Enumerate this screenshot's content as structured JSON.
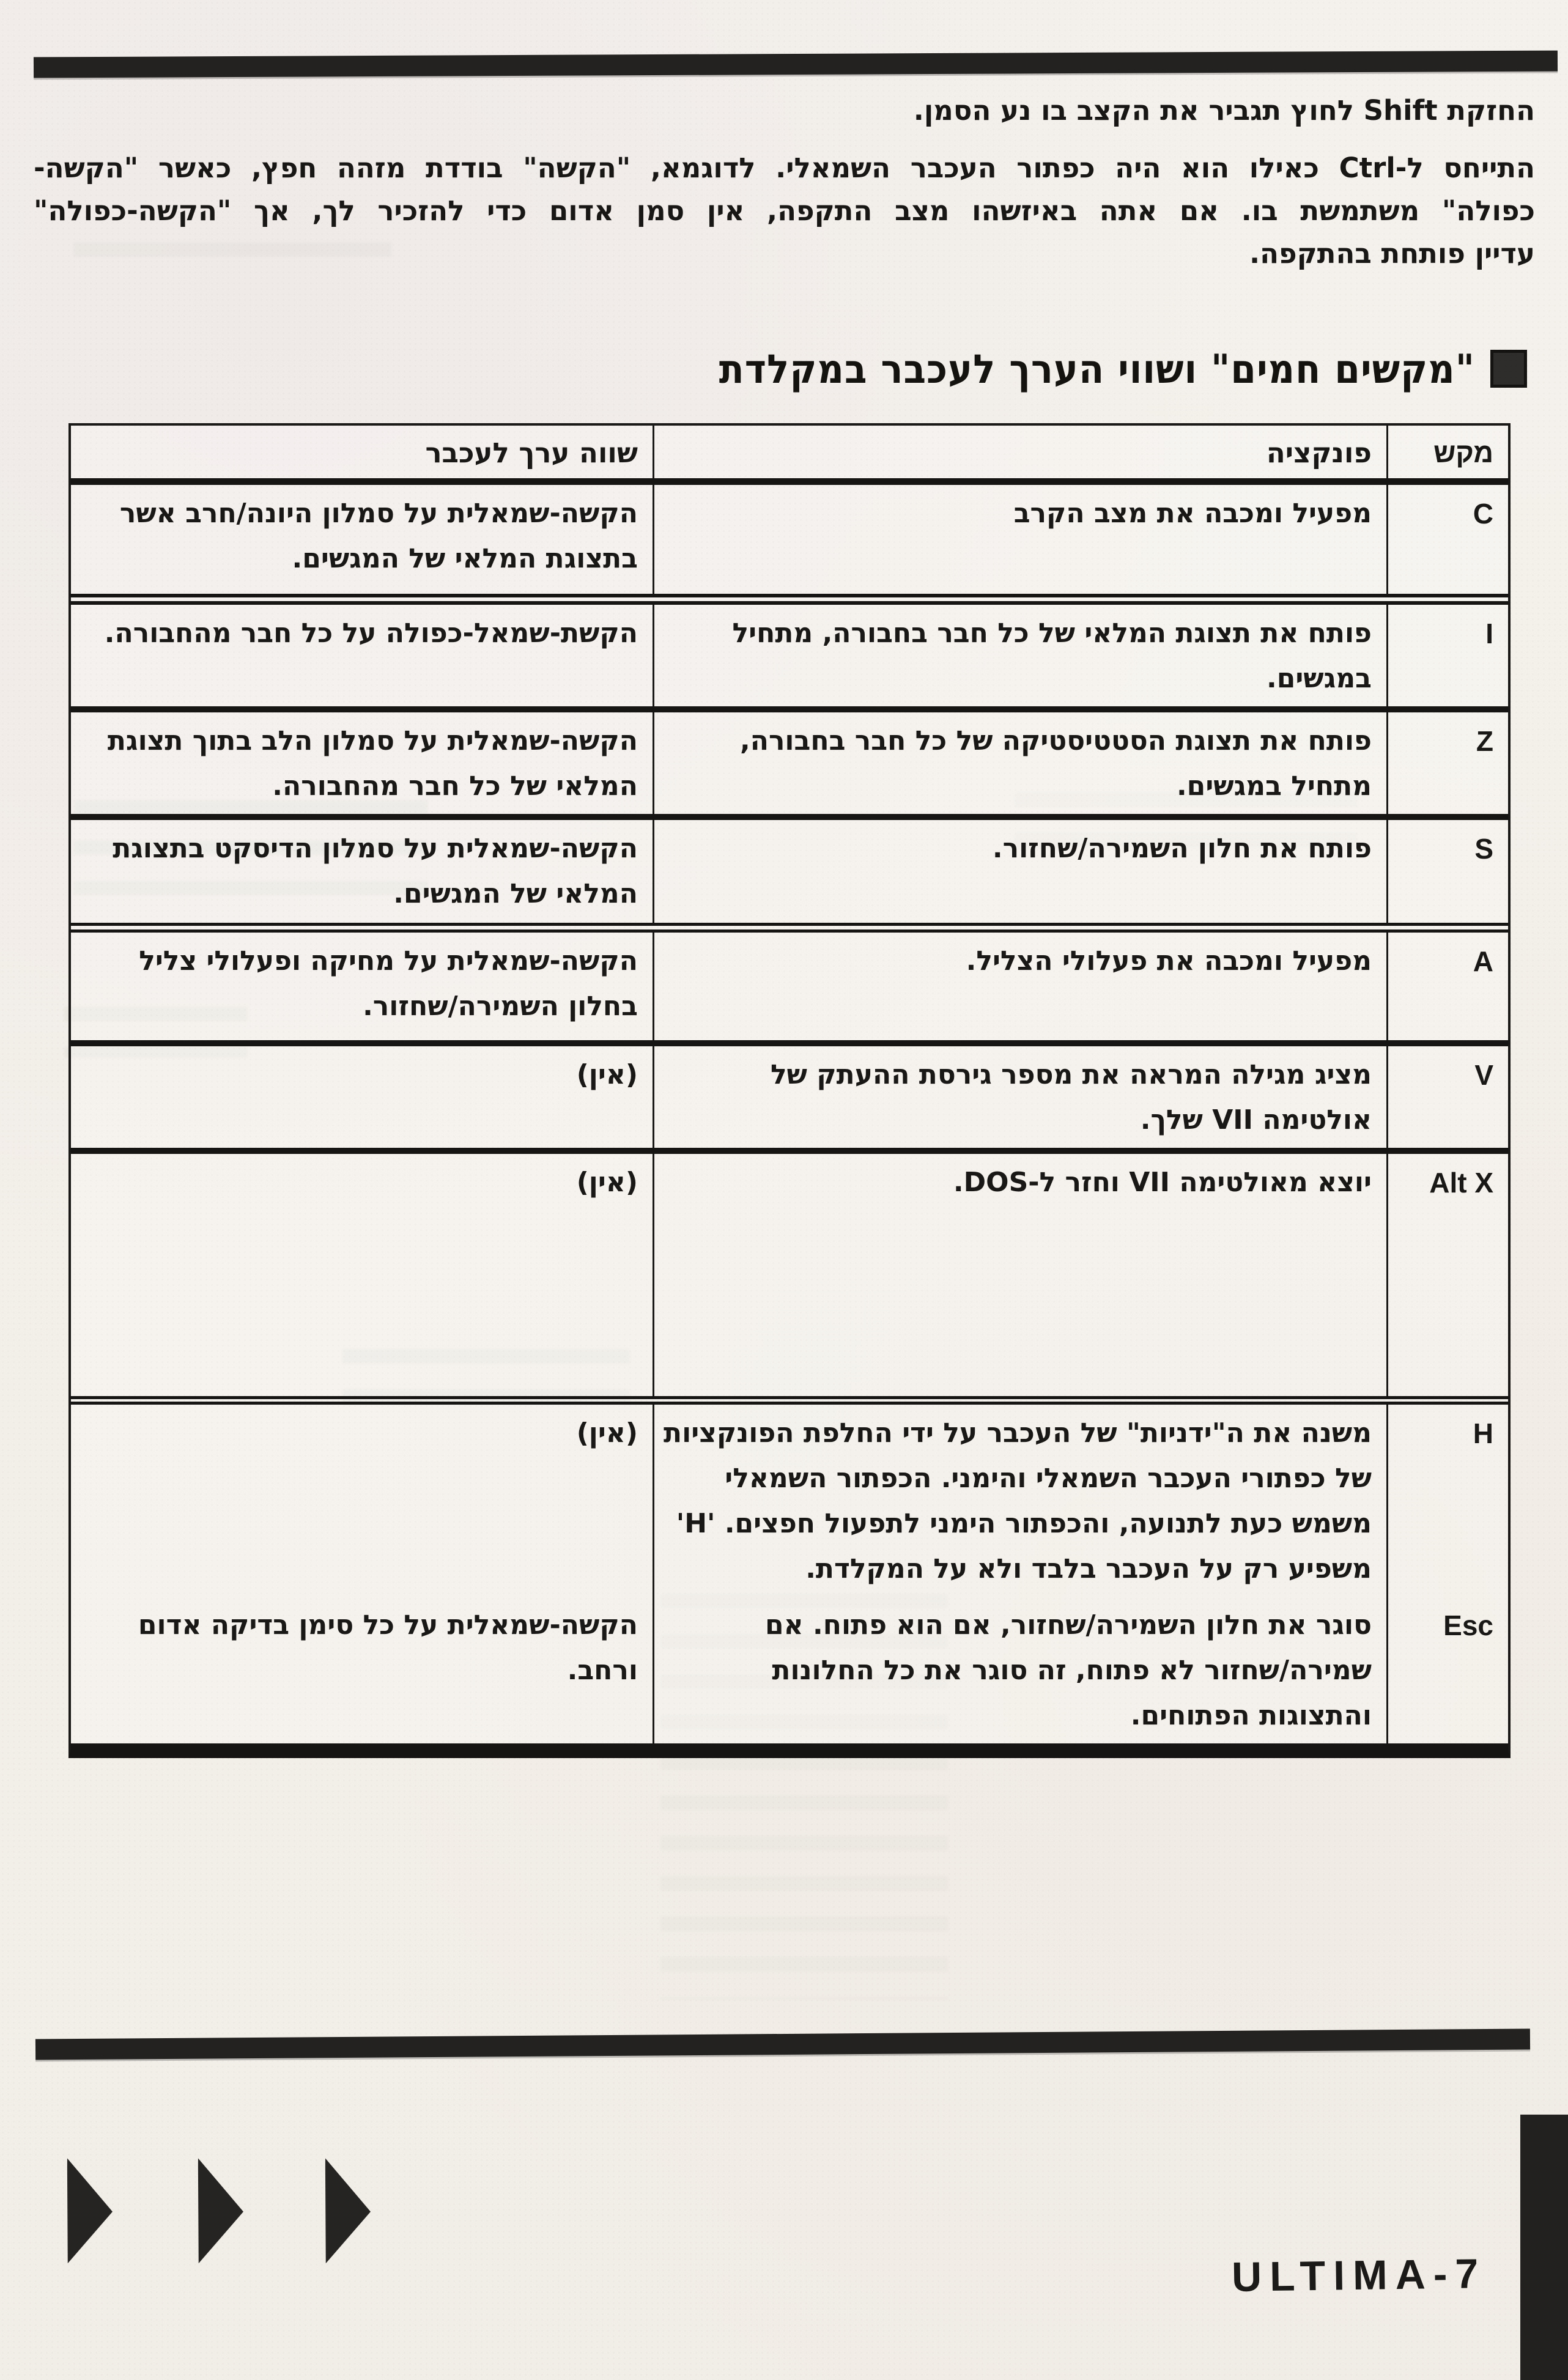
{
  "page": {
    "intro_line": "החזקת Shift לחוץ תגביר את הקצב בו נע הסמן.",
    "intro_lines": [
      "התייחס ל-Ctrl כאילו הוא היה כפתור העכבר השמאלי. לדוגמא, \"הקשה\" בודדת מזהה חפץ, כאשר \"הקשה-",
      "כפולה\" משתמשת בו. אם אתה באיזשהו מצב התקפה, אין סמן אדום כדי להזכיר לך, אך \"הקשה-כפולה\"",
      "עדיין פותחת בהתקפה."
    ],
    "heading": "\"מקשים חמים\" ושווי הערך לעכבר במקלדת",
    "brand": "ULTIMA-7",
    "colors": {
      "paper": "#f3efe9",
      "ink": "#1c1a18",
      "rule": "#232220"
    }
  },
  "table": {
    "headers": {
      "key": "מקש",
      "function": "פונקציה",
      "mouse": "שווה ערך לעכבר"
    },
    "rows": [
      {
        "key": "C",
        "function": "מפעיל ומכבה את מצב הקרב",
        "mouse": "הקשה-שמאלית על סמלון היונה/חרב אשר בתצוגת המלאי של המגשים."
      },
      {
        "key": "I",
        "function": "פותח את תצוגת המלאי של כל חבר בחבורה, מתחיל במגשים.",
        "mouse": "הקשת-שמאל-כפולה על כל חבר מהחבורה."
      },
      {
        "key": "Z",
        "function": "פותח את תצוגת הסטטיסטיקה של כל חבר בחבורה, מתחיל במגשים.",
        "mouse": "הקשה-שמאלית על סמלון הלב בתוך תצוגת המלאי של כל חבר מהחבורה."
      },
      {
        "key": "S",
        "function": "פותח את חלון השמירה/שחזור.",
        "mouse": "הקשה-שמאלית על סמלון הדיסקט בתצוגת המלאי של המגשים."
      },
      {
        "key": "A",
        "function": "מפעיל ומכבה את פעלולי הצליל.",
        "mouse": "הקשה-שמאלית על מחיקה ופעלולי צליל בחלון השמירה/שחזור."
      },
      {
        "key": "V",
        "function": "מציג מגילה המראה את מספר גירסת ההעתק של אולטימה VII שלך.",
        "mouse": "(אין)"
      },
      {
        "key": "Alt X",
        "function": "יוצא מאולטימה VII וחזר ל-DOS.",
        "mouse": "(אין)"
      },
      {
        "key": "H",
        "function": "משנה את ה\"ידניות\" של העכבר על ידי החלפת הפונקציות של כפתורי העכבר השמאלי והימני. הכפתור השמאלי משמש כעת לתנועה, והכפתור הימני לתפעול חפצים. 'H' משפיע רק על העכבר בלבד ולא על המקלדת.",
        "mouse": "(אין)"
      },
      {
        "key": "Esc",
        "function": "סוגר את חלון השמירה/שחזור, אם הוא פתוח. אם שמירה/שחזור לא פתוח, זה סוגר את כל החלונות והתצוגות הפתוחים.",
        "mouse": "הקשה-שמאלית על כל סימן בדיקה אדום ורחב."
      }
    ]
  }
}
